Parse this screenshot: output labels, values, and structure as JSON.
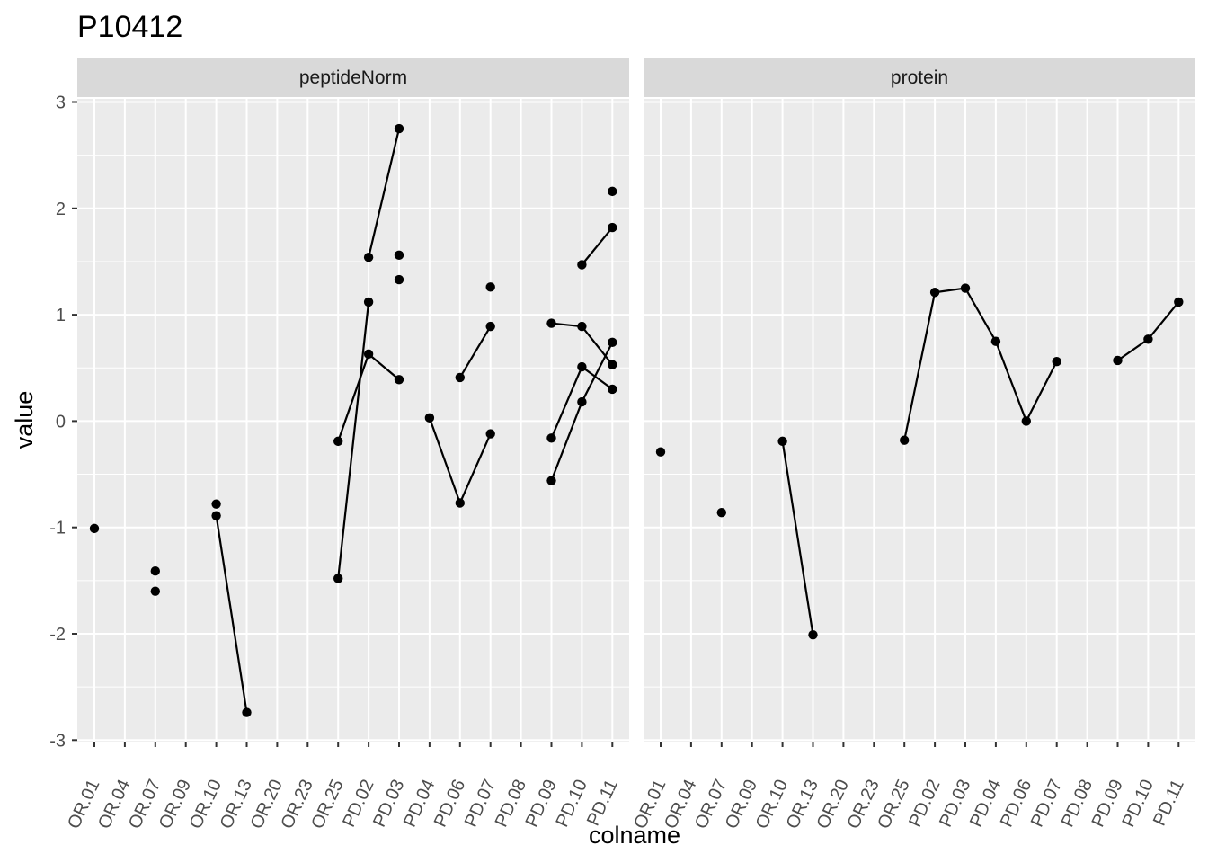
{
  "chart_data": {
    "type": "line",
    "title": "P10412",
    "xlabel": "colname",
    "ylabel": "value",
    "ylim": [
      -3,
      3
    ],
    "yticks": [
      -3,
      -2,
      -1,
      0,
      1,
      2,
      3
    ],
    "categories": [
      "OR.01",
      "OR.04",
      "OR.07",
      "OR.09",
      "OR.10",
      "OR.13",
      "OR.20",
      "OR.23",
      "OR.25",
      "PD.02",
      "PD.03",
      "PD.04",
      "PD.06",
      "PD.07",
      "PD.08",
      "PD.09",
      "PD.10",
      "PD.11"
    ],
    "grid": true,
    "legend": "none",
    "colors": {
      "panel": "#ebebeb",
      "grid": "#ffffff",
      "strip": "#d9d9d9",
      "mark": "#000000",
      "tick": "#333333"
    },
    "facets": [
      {
        "label": "peptideNorm",
        "points": [
          {
            "x": "OR.01",
            "y": -1.01
          },
          {
            "x": "OR.07",
            "y": -1.41
          },
          {
            "x": "OR.07",
            "y": -1.6
          },
          {
            "x": "OR.10",
            "y": -0.78
          },
          {
            "x": "OR.10",
            "y": -0.89
          },
          {
            "x": "OR.13",
            "y": -2.74
          },
          {
            "x": "OR.25",
            "y": -0.19
          },
          {
            "x": "OR.25",
            "y": -1.48
          },
          {
            "x": "PD.02",
            "y": 1.54
          },
          {
            "x": "PD.02",
            "y": 1.12
          },
          {
            "x": "PD.02",
            "y": 0.63
          },
          {
            "x": "PD.03",
            "y": 2.75
          },
          {
            "x": "PD.03",
            "y": 1.56
          },
          {
            "x": "PD.03",
            "y": 1.33
          },
          {
            "x": "PD.03",
            "y": 0.39
          },
          {
            "x": "PD.04",
            "y": 0.03
          },
          {
            "x": "PD.06",
            "y": 0.41
          },
          {
            "x": "PD.06",
            "y": -0.77
          },
          {
            "x": "PD.07",
            "y": 1.26
          },
          {
            "x": "PD.07",
            "y": 0.89
          },
          {
            "x": "PD.07",
            "y": -0.12
          },
          {
            "x": "PD.09",
            "y": 0.92
          },
          {
            "x": "PD.09",
            "y": -0.16
          },
          {
            "x": "PD.09",
            "y": -0.56
          },
          {
            "x": "PD.10",
            "y": 1.47
          },
          {
            "x": "PD.10",
            "y": 0.89
          },
          {
            "x": "PD.10",
            "y": 0.51
          },
          {
            "x": "PD.10",
            "y": 0.18
          },
          {
            "x": "PD.11",
            "y": 2.16
          },
          {
            "x": "PD.11",
            "y": 1.82
          },
          {
            "x": "PD.11",
            "y": 0.74
          },
          {
            "x": "PD.11",
            "y": 0.53
          },
          {
            "x": "PD.11",
            "y": 0.3
          }
        ],
        "lines": [
          [
            {
              "x": "OR.10",
              "y": -0.89
            },
            {
              "x": "OR.13",
              "y": -2.74
            }
          ],
          [
            {
              "x": "OR.25",
              "y": -1.48
            },
            {
              "x": "PD.02",
              "y": 1.12
            }
          ],
          [
            {
              "x": "PD.02",
              "y": 1.54
            },
            {
              "x": "PD.03",
              "y": 2.75
            }
          ],
          [
            {
              "x": "OR.25",
              "y": -0.19
            },
            {
              "x": "PD.02",
              "y": 0.63
            },
            {
              "x": "PD.03",
              "y": 0.39
            }
          ],
          [
            {
              "x": "PD.04",
              "y": 0.03
            },
            {
              "x": "PD.06",
              "y": -0.77
            },
            {
              "x": "PD.07",
              "y": -0.12
            }
          ],
          [
            {
              "x": "PD.06",
              "y": 0.41
            },
            {
              "x": "PD.07",
              "y": 0.89
            }
          ],
          [
            {
              "x": "PD.09",
              "y": 0.92
            },
            {
              "x": "PD.10",
              "y": 0.89
            },
            {
              "x": "PD.11",
              "y": 0.53
            }
          ],
          [
            {
              "x": "PD.10",
              "y": 1.47
            },
            {
              "x": "PD.11",
              "y": 1.82
            }
          ],
          [
            {
              "x": "PD.09",
              "y": -0.16
            },
            {
              "x": "PD.10",
              "y": 0.51
            },
            {
              "x": "PD.11",
              "y": 0.3
            }
          ],
          [
            {
              "x": "PD.09",
              "y": -0.56
            },
            {
              "x": "PD.10",
              "y": 0.18
            },
            {
              "x": "PD.11",
              "y": 0.74
            }
          ]
        ]
      },
      {
        "label": "protein",
        "points": [
          {
            "x": "OR.01",
            "y": -0.29
          },
          {
            "x": "OR.07",
            "y": -0.86
          },
          {
            "x": "OR.10",
            "y": -0.19
          },
          {
            "x": "OR.13",
            "y": -2.01
          },
          {
            "x": "OR.25",
            "y": -0.18
          },
          {
            "x": "PD.02",
            "y": 1.21
          },
          {
            "x": "PD.03",
            "y": 1.25
          },
          {
            "x": "PD.04",
            "y": 0.75
          },
          {
            "x": "PD.06",
            "y": 0.0
          },
          {
            "x": "PD.07",
            "y": 0.56
          },
          {
            "x": "PD.09",
            "y": 0.57
          },
          {
            "x": "PD.10",
            "y": 0.77
          },
          {
            "x": "PD.11",
            "y": 1.12
          }
        ],
        "lines": [
          [
            {
              "x": "OR.10",
              "y": -0.19
            },
            {
              "x": "OR.13",
              "y": -2.01
            }
          ],
          [
            {
              "x": "OR.25",
              "y": -0.18
            },
            {
              "x": "PD.02",
              "y": 1.21
            },
            {
              "x": "PD.03",
              "y": 1.25
            },
            {
              "x": "PD.04",
              "y": 0.75
            },
            {
              "x": "PD.06",
              "y": 0.0
            },
            {
              "x": "PD.07",
              "y": 0.56
            }
          ],
          [
            {
              "x": "PD.09",
              "y": 0.57
            },
            {
              "x": "PD.10",
              "y": 0.77
            },
            {
              "x": "PD.11",
              "y": 1.12
            }
          ]
        ]
      }
    ]
  }
}
